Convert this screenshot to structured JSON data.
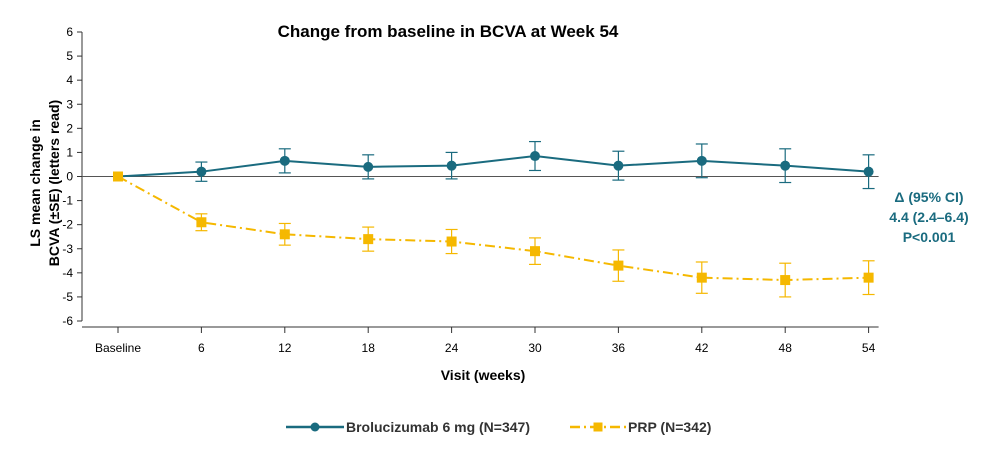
{
  "chart_data": {
    "type": "line",
    "title": "Change from baseline in BCVA at Week 54",
    "xlabel": "Visit (weeks)",
    "ylabel_line1": "LS mean change in",
    "ylabel_line2": "BCVA (±SE) (letters read)",
    "categories": [
      "Baseline",
      "6",
      "12",
      "18",
      "24",
      "30",
      "36",
      "42",
      "48",
      "54"
    ],
    "ylim": [
      -6,
      6
    ],
    "yticks": [
      "6",
      "5",
      "4",
      "3",
      "2",
      "1",
      "0",
      "-1",
      "-2",
      "-3",
      "-4",
      "-5",
      "-6"
    ],
    "grid": false,
    "series": [
      {
        "name": "Brolucizumab 6 mg (N=347)",
        "color": "#1a6b7f",
        "marker": "circle",
        "line_style": "solid",
        "values": [
          0,
          0.2,
          0.65,
          0.4,
          0.45,
          0.85,
          0.45,
          0.65,
          0.45,
          0.2
        ],
        "se": [
          0,
          0.4,
          0.5,
          0.5,
          0.55,
          0.6,
          0.6,
          0.7,
          0.7,
          0.7
        ]
      },
      {
        "name": "PRP (N=342)",
        "color": "#f5b800",
        "marker": "square",
        "line_style": "dashdot",
        "values": [
          0,
          -1.9,
          -2.4,
          -2.6,
          -2.7,
          -3.1,
          -3.7,
          -4.2,
          -4.3,
          -4.2
        ],
        "se": [
          0,
          0.35,
          0.45,
          0.5,
          0.5,
          0.55,
          0.65,
          0.65,
          0.7,
          0.7
        ]
      }
    ],
    "annotation": {
      "line1": "Δ (95% CI)",
      "line2": "4.4 (2.4–6.4)",
      "line3": "P<0.001"
    },
    "legend_position": "bottom-center"
  }
}
